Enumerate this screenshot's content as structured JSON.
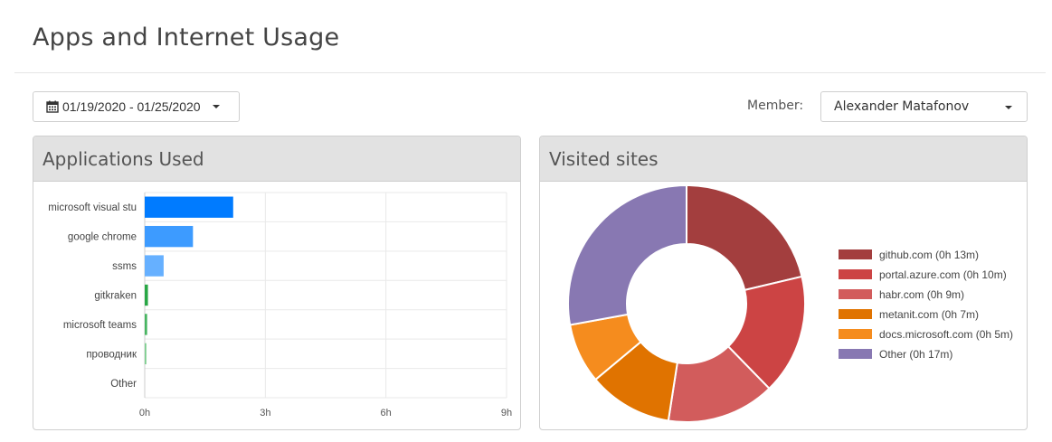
{
  "page": {
    "title": "Apps and Internet Usage"
  },
  "filters": {
    "date_range": "01/19/2020 - 01/25/2020",
    "member_label": "Member:",
    "member_value": "Alexander Matafonov"
  },
  "panels": {
    "apps": {
      "title": "Applications Used"
    },
    "sites": {
      "title": "Visited sites"
    }
  },
  "icons": {
    "date": "calendar-icon",
    "dropdown": "caret-down-icon"
  },
  "chart_data": [
    {
      "type": "bar",
      "orientation": "horizontal",
      "categories": [
        "microsoft visual stu",
        "google chrome",
        "ssms",
        "gitkraken",
        "microsoft teams",
        "проводник",
        "Other"
      ],
      "values": [
        2.2,
        1.2,
        0.47,
        0.08,
        0.06,
        0.04,
        0
      ],
      "colors": [
        "#007bff",
        "#3d9bff",
        "#66b0ff",
        "#28a745",
        "#47b561",
        "#7ccd8e",
        "#cccccc"
      ],
      "x_ticks": [
        "0h",
        "3h",
        "6h",
        "9h"
      ],
      "xlim": [
        0,
        9
      ],
      "grid": true
    },
    {
      "type": "pie",
      "donut": true,
      "labels": [
        "github.com (0h 13m)",
        "portal.azure.com (0h 10m)",
        "habr.com (0h 9m)",
        "metanit.com (0h 7m)",
        "docs.microsoft.com (0h 5m)",
        "Other (0h 17m)"
      ],
      "values": [
        13,
        10,
        9,
        7,
        5,
        17
      ],
      "colors": [
        "#a33e3e",
        "#cc4444",
        "#d25c5c",
        "#e07300",
        "#f58c1e",
        "#8878b2"
      ],
      "legend": "right"
    }
  ]
}
